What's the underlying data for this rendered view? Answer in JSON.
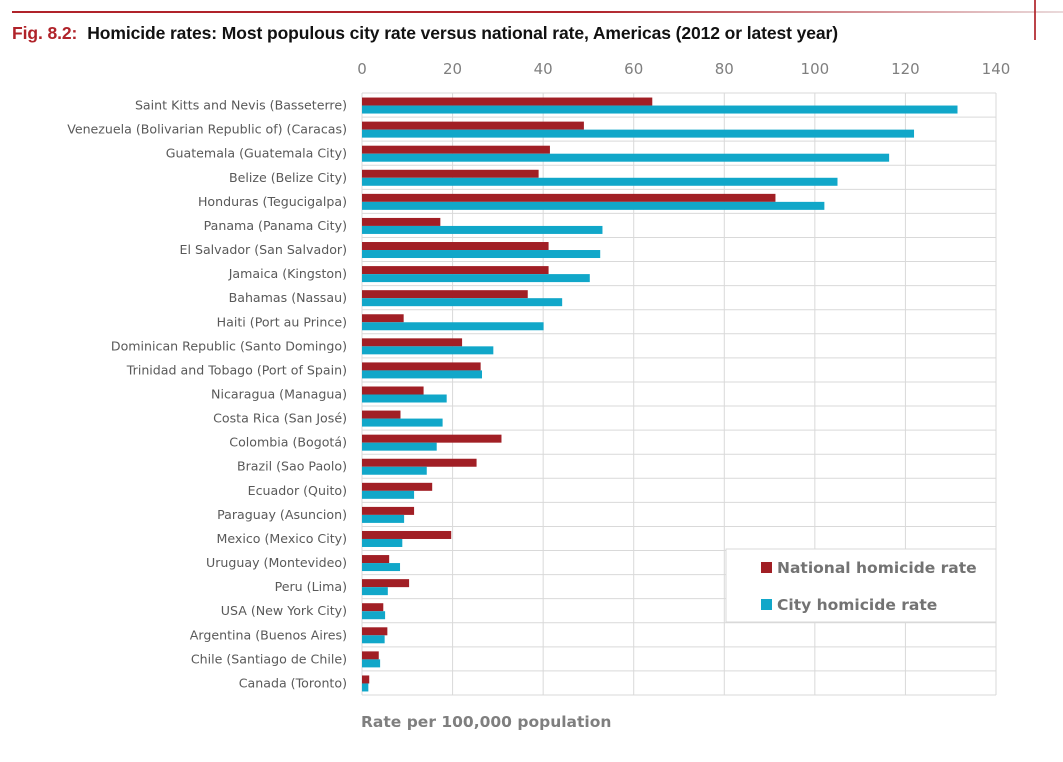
{
  "figure": {
    "number": "Fig. 8.2:",
    "title": "Homicide rates: Most populous city rate versus national rate, Americas (2012 or latest year)"
  },
  "colors": {
    "national": "#a11f25",
    "city": "#11a7c9",
    "accent": "#b0232a",
    "grid": "#d9d9d9"
  },
  "chart_data": {
    "type": "bar",
    "orientation": "horizontal",
    "title": "Homicide rates: Most populous city rate versus national rate, Americas (2012 or latest year)",
    "xlabel": "Rate per 100,000 population",
    "ylabel": "",
    "xlim": [
      0,
      140
    ],
    "x_ticks": [
      0,
      20,
      40,
      60,
      80,
      100,
      120,
      140
    ],
    "x_axis_position": "top",
    "grid": true,
    "legend_position": "bottom-right",
    "categories": [
      "Saint Kitts and Nevis (Basseterre)",
      "Venezuela (Bolivarian Republic of) (Caracas)",
      "Guatemala (Guatemala City)",
      "Belize (Belize City)",
      "Honduras (Tegucigalpa)",
      "Panama (Panama City)",
      "El Salvador (San Salvador)",
      "Jamaica (Kingston)",
      "Bahamas (Nassau)",
      "Haiti (Port au Prince)",
      "Dominican Republic (Santo Domingo)",
      "Trinidad and Tobago (Port of Spain)",
      "Nicaragua (Managua)",
      "Costa Rica (San José)",
      "Colombia (Bogotá)",
      "Brazil (Sao Paolo)",
      "Ecuador (Quito)",
      "Paraguay (Asuncion)",
      "Mexico (Mexico City)",
      "Uruguay (Montevideo)",
      "Peru (Lima)",
      "USA (New York City)",
      "Argentina (Buenos Aires)",
      "Chile (Santiago de Chile)",
      "Canada (Toronto)"
    ],
    "series": [
      {
        "name": "National homicide rate",
        "color": "#a11f25",
        "values": [
          64.1,
          49.0,
          41.5,
          39.0,
          91.3,
          17.3,
          41.2,
          41.2,
          36.6,
          9.2,
          22.1,
          26.2,
          13.6,
          8.5,
          30.8,
          25.3,
          15.5,
          11.5,
          19.7,
          6.0,
          10.4,
          4.7,
          5.6,
          3.7,
          1.6
        ]
      },
      {
        "name": "City homicide rate",
        "color": "#11a7c9",
        "values": [
          131.5,
          121.9,
          116.4,
          105.0,
          102.1,
          53.1,
          52.6,
          50.3,
          44.2,
          40.1,
          29.0,
          26.5,
          18.7,
          17.8,
          16.5,
          14.3,
          11.5,
          9.3,
          8.9,
          8.4,
          5.7,
          5.1,
          5.0,
          4.0,
          1.4
        ]
      }
    ]
  }
}
